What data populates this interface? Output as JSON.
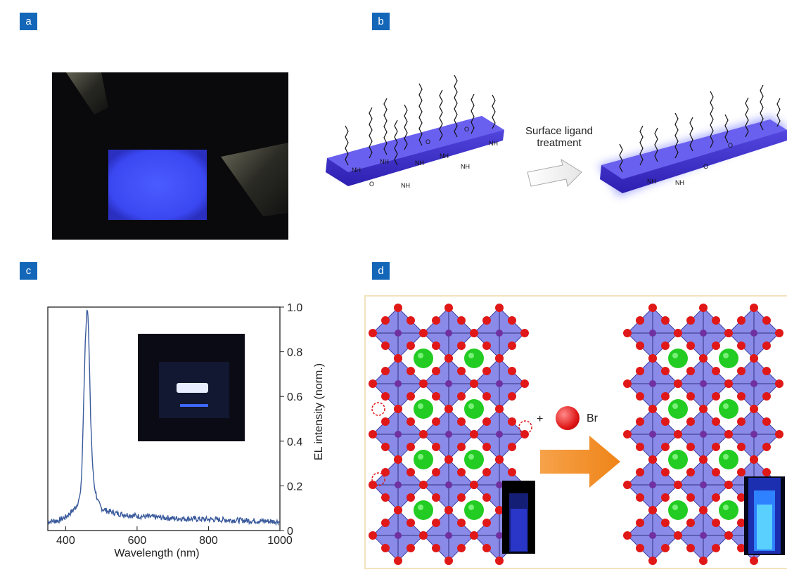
{
  "panels": {
    "a": {
      "label": "a"
    },
    "b": {
      "label": "b",
      "arrow_line1": "Surface ligand",
      "arrow_line2": "treatment"
    },
    "c": {
      "label": "c"
    },
    "d": {
      "label": "d",
      "plus": "+",
      "br_label": "Br"
    }
  },
  "chart_data": {
    "type": "line",
    "title": "",
    "xlabel": "Wavelength (nm)",
    "ylabel": "EL intensity (norm.)",
    "xlim": [
      350,
      1000
    ],
    "ylim": [
      0,
      1.0
    ],
    "x_ticks": [
      "400",
      "600",
      "800",
      "1000"
    ],
    "y_ticks": [
      "0",
      "0.2",
      "0.4",
      "0.6",
      "0.8",
      "1.0"
    ],
    "y_axis_side": "right",
    "grid": false,
    "series": [
      {
        "color": "#3a5a9c",
        "x": [
          350,
          380,
          400,
          420,
          430,
          440,
          445,
          450,
          455,
          460,
          463,
          466,
          470,
          475,
          480,
          490,
          500,
          520,
          550,
          600,
          700,
          800,
          900,
          1000
        ],
        "y": [
          0.04,
          0.045,
          0.06,
          0.09,
          0.11,
          0.15,
          0.25,
          0.55,
          0.85,
          1.0,
          0.95,
          0.78,
          0.5,
          0.3,
          0.2,
          0.13,
          0.1,
          0.085,
          0.075,
          0.065,
          0.055,
          0.05,
          0.045,
          0.04
        ]
      }
    ]
  },
  "colors": {
    "tag_bg": "#1467b8",
    "perovskite_blue": "#4a3fd6",
    "octahedron": "#8a8ae8",
    "anion": "#e01818",
    "cation": "#22cc22",
    "arrow_orange": "#f39020",
    "curve": "#3a5a9c"
  }
}
